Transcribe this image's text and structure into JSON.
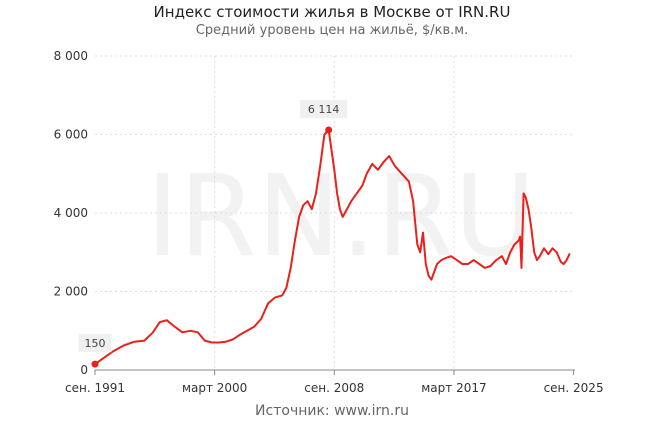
{
  "chart_data": {
    "type": "line",
    "title": "Индекс стоимости жилья в Москве от IRN.RU",
    "subtitle": "Средний уровень цен на жильё, $/кв.м.",
    "source": "Источник:  www.irn.ru",
    "watermark": "IRN.RU",
    "ylim": [
      0,
      8000
    ],
    "y_ticks": [
      {
        "value": 0,
        "label": "0"
      },
      {
        "value": 2000,
        "label": "2 000"
      },
      {
        "value": 4000,
        "label": "4 000"
      },
      {
        "value": 6000,
        "label": "6 000"
      },
      {
        "value": 8000,
        "label": "8 000"
      }
    ],
    "xlim": [
      1991.7,
      2025.8
    ],
    "x_ticks": [
      {
        "value": 1991.7,
        "label": "сен. 1991"
      },
      {
        "value": 2000.2,
        "label": "март 2000"
      },
      {
        "value": 2008.7,
        "label": "сен. 2008"
      },
      {
        "value": 2017.2,
        "label": "март 2017"
      },
      {
        "value": 2025.7,
        "label": "сен. 2025"
      }
    ],
    "grid": true,
    "line_color": "#e8221b",
    "series": [
      {
        "x": [
          1991.7,
          1992.3,
          1993.0,
          1993.7,
          1994.5,
          1995.2,
          1995.8,
          1996.3,
          1996.8,
          1997.3,
          1997.9,
          1998.5,
          1999.0,
          1999.5,
          2000.0,
          2000.5,
          2001.0,
          2001.5,
          2002.0,
          2002.5,
          2003.0,
          2003.5,
          2004.0,
          2004.5,
          2005.0,
          2005.3,
          2005.6,
          2005.9,
          2006.2,
          2006.5,
          2006.8,
          2007.1,
          2007.4,
          2007.7,
          2008.0,
          2008.3,
          2008.7,
          2008.9,
          2009.1,
          2009.3,
          2009.6,
          2009.9,
          2010.3,
          2010.7,
          2011.0,
          2011.4,
          2011.8,
          2012.2,
          2012.6,
          2013.0,
          2013.5,
          2014.0,
          2014.3,
          2014.6,
          2014.8,
          2015.0,
          2015.2,
          2015.4,
          2015.6,
          2015.8,
          2016.0,
          2016.3,
          2016.6,
          2017.0,
          2017.4,
          2017.8,
          2018.2,
          2018.6,
          2019.0,
          2019.4,
          2019.8,
          2020.2,
          2020.6,
          2020.9,
          2021.2,
          2021.5,
          2021.8,
          2021.9,
          2022.0,
          2022.15,
          2022.3,
          2022.5,
          2022.7,
          2022.9,
          2023.1,
          2023.3,
          2023.6,
          2023.9,
          2024.2,
          2024.5,
          2024.8,
          2025.0,
          2025.2,
          2025.4
        ],
        "values": [
          150,
          300,
          480,
          620,
          720,
          750,
          950,
          1220,
          1270,
          1120,
          960,
          1000,
          960,
          750,
          700,
          700,
          720,
          780,
          900,
          1000,
          1100,
          1300,
          1700,
          1850,
          1900,
          2100,
          2600,
          3300,
          3900,
          4200,
          4300,
          4100,
          4500,
          5200,
          6000,
          6114,
          5100,
          4500,
          4100,
          3900,
          4100,
          4300,
          4500,
          4700,
          5000,
          5250,
          5100,
          5300,
          5450,
          5200,
          5000,
          4800,
          4300,
          3200,
          3000,
          3500,
          2700,
          2400,
          2300,
          2500,
          2700,
          2800,
          2850,
          2900,
          2800,
          2700,
          2700,
          2800,
          2700,
          2600,
          2650,
          2800,
          2900,
          2700,
          3000,
          3200,
          3300,
          3400,
          2600,
          4500,
          4400,
          4100,
          3600,
          3000,
          2800,
          2900,
          3100,
          2950,
          3100,
          3000,
          2750,
          2700,
          2800,
          2950
        ]
      }
    ],
    "annotations": [
      {
        "x": 1991.7,
        "y": 150,
        "label": "150"
      },
      {
        "x": 2008.3,
        "y": 6114,
        "label": "6 114"
      }
    ]
  }
}
